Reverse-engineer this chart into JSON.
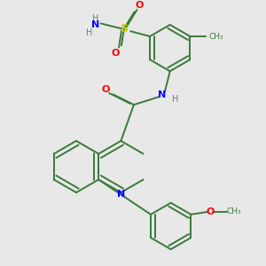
{
  "background_color": "#e8e8e8",
  "bond_color": "#3a7a3a",
  "N_color": "#0000ff",
  "O_color": "#ff0000",
  "S_color": "#cccc00",
  "H_color": "#777777",
  "line_width": 1.4,
  "figsize": [
    3.0,
    3.0
  ],
  "dpi": 100,
  "xlim": [
    0,
    10
  ],
  "ylim": [
    0,
    10
  ]
}
